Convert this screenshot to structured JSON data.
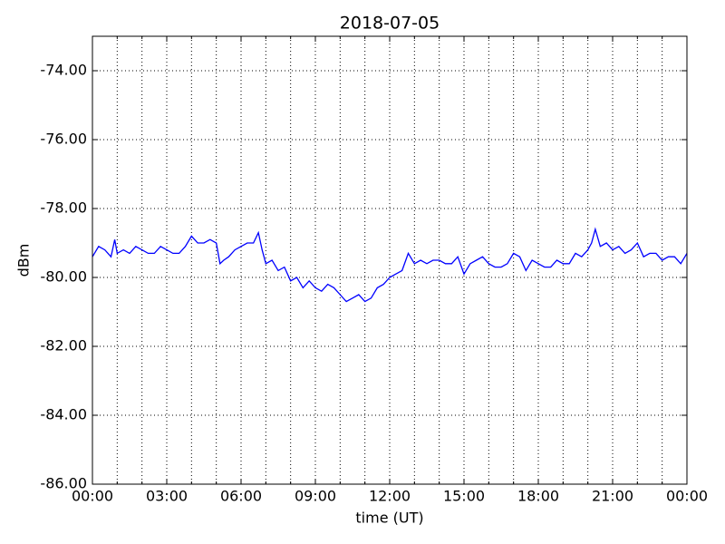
{
  "chart_data": {
    "type": "line",
    "title": "2018-07-05",
    "x_label": "time (UT)",
    "y_label": "dBm",
    "x": [
      0,
      0.25,
      0.5,
      0.75,
      0.9,
      1,
      1.25,
      1.5,
      1.75,
      2,
      2.25,
      2.5,
      2.75,
      3,
      3.25,
      3.5,
      3.75,
      4,
      4.25,
      4.5,
      4.75,
      5,
      5.15,
      5.3,
      5.5,
      5.75,
      6,
      6.25,
      6.5,
      6.7,
      6.85,
      7,
      7.25,
      7.5,
      7.75,
      8,
      8.25,
      8.5,
      8.75,
      9,
      9.25,
      9.5,
      9.75,
      10,
      10.25,
      10.5,
      10.75,
      11,
      11.25,
      11.5,
      11.75,
      12,
      12.25,
      12.5,
      12.75,
      13,
      13.25,
      13.5,
      13.75,
      14,
      14.25,
      14.5,
      14.75,
      15,
      15.25,
      15.5,
      15.75,
      16,
      16.25,
      16.5,
      16.75,
      17,
      17.25,
      17.5,
      17.75,
      18,
      18.25,
      18.5,
      18.75,
      19,
      19.25,
      19.5,
      19.75,
      20,
      20.15,
      20.3,
      20.5,
      20.75,
      21,
      21.25,
      21.5,
      21.75,
      22,
      22.25,
      22.5,
      22.75,
      23,
      23.25,
      23.5,
      23.75,
      24
    ],
    "series": [
      {
        "name": "dBm",
        "color": "#0000ff",
        "values": [
          -79.4,
          -79.1,
          -79.2,
          -79.4,
          -78.9,
          -79.3,
          -79.2,
          -79.3,
          -79.1,
          -79.2,
          -79.3,
          -79.3,
          -79.1,
          -79.2,
          -79.3,
          -79.3,
          -79.1,
          -78.8,
          -79.0,
          -79.0,
          -78.9,
          -79.0,
          -79.6,
          -79.5,
          -79.4,
          -79.2,
          -79.1,
          -79.0,
          -79.0,
          -78.7,
          -79.2,
          -79.6,
          -79.5,
          -79.8,
          -79.7,
          -80.1,
          -80.0,
          -80.3,
          -80.1,
          -80.3,
          -80.4,
          -80.2,
          -80.3,
          -80.5,
          -80.7,
          -80.6,
          -80.5,
          -80.7,
          -80.6,
          -80.3,
          -80.2,
          -80.0,
          -79.9,
          -79.8,
          -79.3,
          -79.6,
          -79.5,
          -79.6,
          -79.5,
          -79.5,
          -79.6,
          -79.6,
          -79.4,
          -79.9,
          -79.6,
          -79.5,
          -79.4,
          -79.6,
          -79.7,
          -79.7,
          -79.6,
          -79.3,
          -79.4,
          -79.8,
          -79.5,
          -79.6,
          -79.7,
          -79.7,
          -79.5,
          -79.6,
          -79.6,
          -79.3,
          -79.4,
          -79.2,
          -79.0,
          -78.6,
          -79.1,
          -79.0,
          -79.2,
          -79.1,
          -79.3,
          -79.2,
          -79.0,
          -79.4,
          -79.3,
          -79.3,
          -79.5,
          -79.4,
          -79.4,
          -79.6,
          -79.3
        ]
      }
    ],
    "xlim": [
      0,
      24
    ],
    "ylim": [
      -86,
      -73
    ],
    "xticks": [
      {
        "value": 0,
        "label": "00:00"
      },
      {
        "value": 3,
        "label": "03:00"
      },
      {
        "value": 6,
        "label": "06:00"
      },
      {
        "value": 9,
        "label": "09:00"
      },
      {
        "value": 12,
        "label": "12:00"
      },
      {
        "value": 15,
        "label": "15:00"
      },
      {
        "value": 18,
        "label": "18:00"
      },
      {
        "value": 21,
        "label": "21:00"
      },
      {
        "value": 24,
        "label": "00:00"
      }
    ],
    "xminorticks": [
      1,
      2,
      4,
      5,
      7,
      8,
      10,
      11,
      13,
      14,
      16,
      17,
      19,
      20,
      22,
      23
    ],
    "yticks": [
      {
        "value": -86,
        "label": "-86.00"
      },
      {
        "value": -84,
        "label": "-84.00"
      },
      {
        "value": -82,
        "label": "-82.00"
      },
      {
        "value": -80,
        "label": "-80.00"
      },
      {
        "value": -78,
        "label": "-78.00"
      },
      {
        "value": -76,
        "label": "-76.00"
      },
      {
        "value": -74,
        "label": "-74.00"
      }
    ],
    "grid": true
  }
}
